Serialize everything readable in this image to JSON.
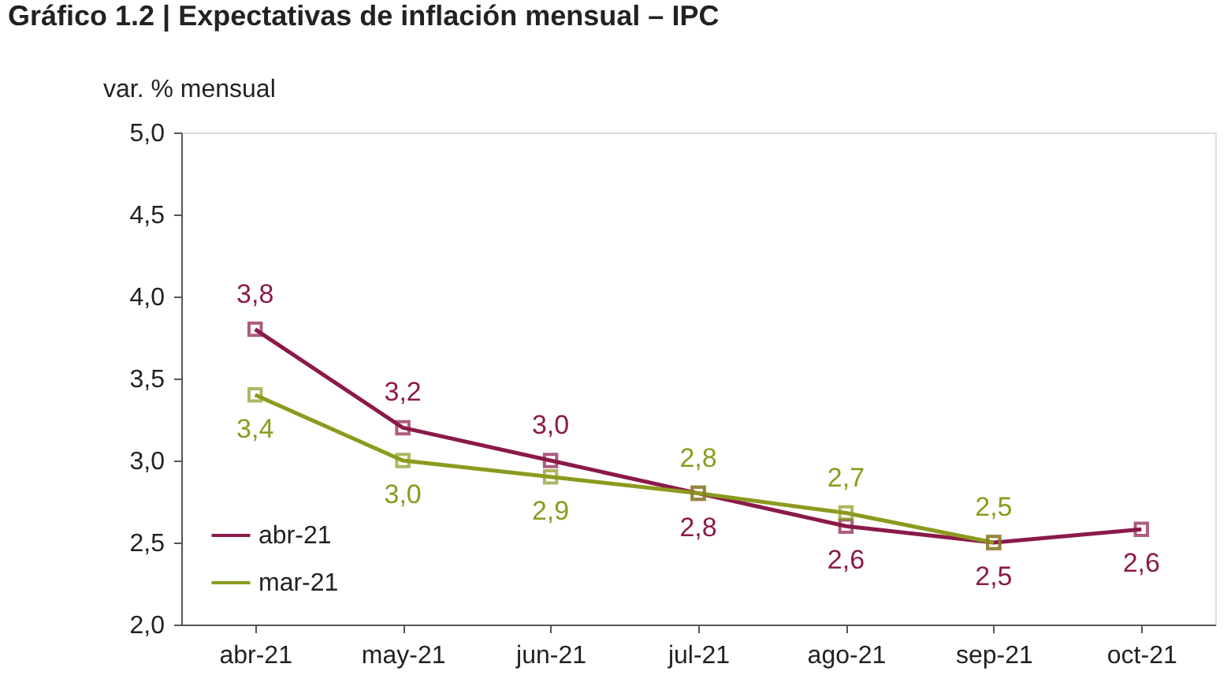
{
  "chart_data": {
    "type": "line",
    "title": "Gráfico 1.2 | Expectativas de inflación mensual – IPC",
    "ylabel": "var. % mensual",
    "categories": [
      "abr-21",
      "may-21",
      "jun-21",
      "jul-21",
      "ago-21",
      "sep-21",
      "oct-21"
    ],
    "series": [
      {
        "name": "abr-21",
        "color": "#8b1a4a",
        "values": [
          3.8,
          3.2,
          3.0,
          2.8,
          2.6,
          2.5,
          2.58
        ],
        "value_labels": [
          "3,8",
          "3,2",
          "3,0",
          "2,8",
          "2,6",
          "2,5",
          "2,6"
        ]
      },
      {
        "name": "mar-21",
        "color": "#8c9a1e",
        "values": [
          3.4,
          3.0,
          2.9,
          2.8,
          2.68,
          2.5,
          null
        ],
        "value_labels": [
          "3,4",
          "3,0",
          "2,9",
          "2,8",
          "2,7",
          "2,5",
          null
        ]
      }
    ],
    "ylim": [
      2.0,
      5.0
    ],
    "yticks": [
      {
        "value": 2.0,
        "label": "2,0"
      },
      {
        "value": 2.5,
        "label": "2,5"
      },
      {
        "value": 3.0,
        "label": "3,0"
      },
      {
        "value": 3.5,
        "label": "3,5"
      },
      {
        "value": 4.0,
        "label": "4,0"
      },
      {
        "value": 4.5,
        "label": "4,5"
      },
      {
        "value": 5.0,
        "label": "5,0"
      }
    ],
    "marker": "square",
    "line_style": "solid",
    "grid": false,
    "legend": "bottom left"
  }
}
